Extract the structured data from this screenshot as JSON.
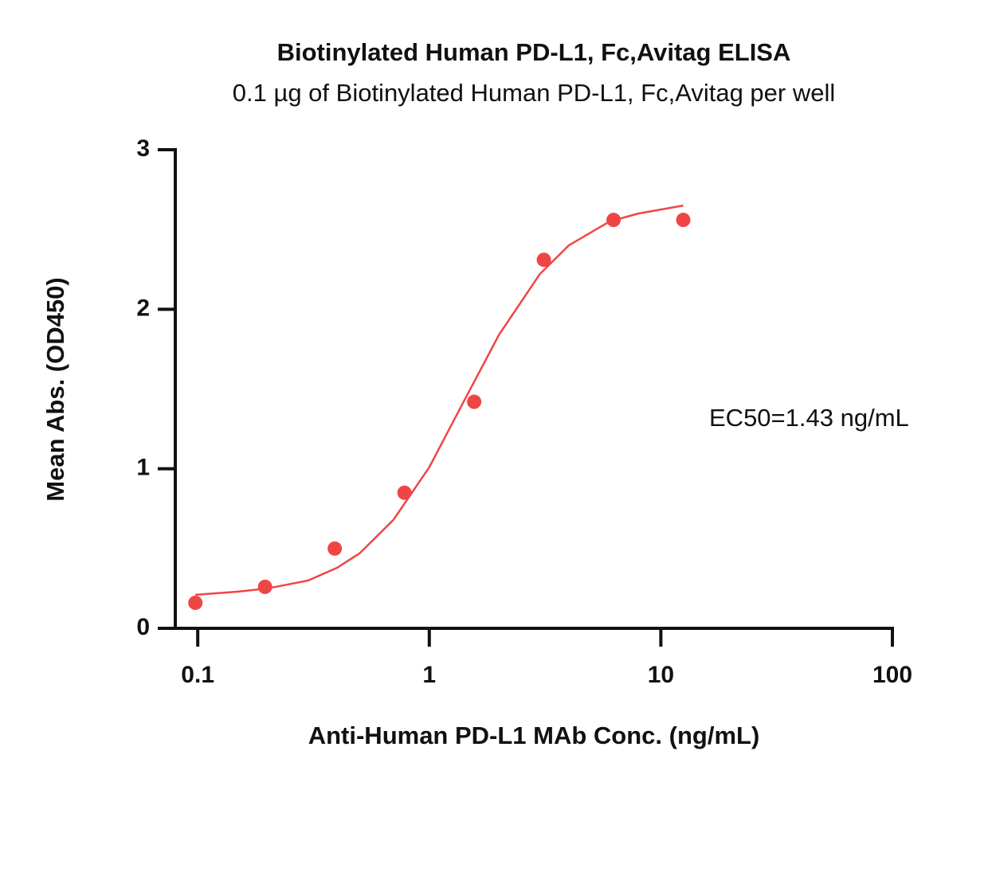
{
  "chart_data": {
    "type": "scatter",
    "title": "Biotinylated Human PD-L1, Fc,Avitag ELISA",
    "subtitle": "0.1 µg of Biotinylated Human PD-L1, Fc,Avitag per well",
    "x_label": "Anti-Human PD-L1 MAb Conc. (ng/mL)",
    "y_label": "Mean Abs. (OD450)",
    "annotation": "EC50=1.43 ng/mL",
    "xscale": "log",
    "xlim": [
      0.08,
      100
    ],
    "xticks": [
      0.1,
      1,
      10,
      100
    ],
    "ylim": [
      0,
      3
    ],
    "yticks": [
      0,
      1,
      2,
      3
    ],
    "series": [
      {
        "kind": "points",
        "color": "#f04545",
        "x": [
          0.0977,
          0.1953,
          0.3906,
          0.7813,
          1.5625,
          3.125,
          6.25,
          12.5
        ],
        "values": [
          0.16,
          0.26,
          0.5,
          0.85,
          1.42,
          2.31,
          2.56,
          2.56
        ]
      },
      {
        "kind": "curve",
        "color": "#f04545",
        "x": [
          0.0977,
          0.15,
          0.2,
          0.3,
          0.4,
          0.5,
          0.7,
          1,
          1.43,
          2,
          3,
          4,
          6,
          8,
          12.5
        ],
        "values": [
          0.21,
          0.23,
          0.25,
          0.3,
          0.38,
          0.47,
          0.68,
          1.01,
          1.44,
          1.84,
          2.22,
          2.4,
          2.55,
          2.6,
          2.65
        ]
      }
    ]
  }
}
